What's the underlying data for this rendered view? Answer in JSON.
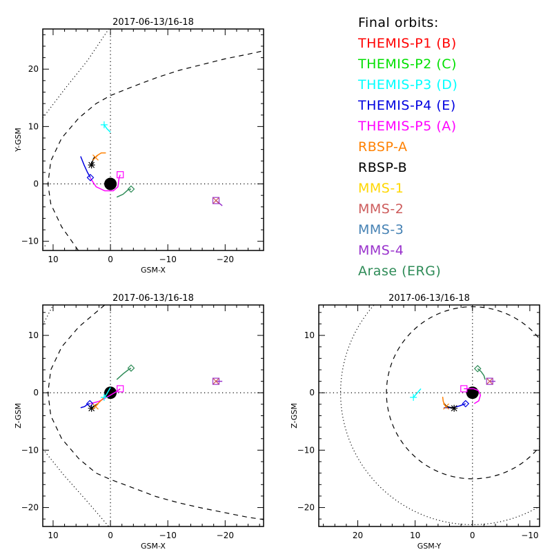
{
  "legend": {
    "title": "Final orbits:",
    "title_color": "#000000",
    "entries": [
      {
        "label": "THEMIS-P1 (B)",
        "color": "#ff0000"
      },
      {
        "label": "THEMIS-P2 (C)",
        "color": "#00e000"
      },
      {
        "label": "THEMIS-P3 (D)",
        "color": "#00ffff"
      },
      {
        "label": "THEMIS-P4 (E)",
        "color": "#0000e0"
      },
      {
        "label": "THEMIS-P5 (A)",
        "color": "#ff00ff"
      },
      {
        "label": "RBSP-A",
        "color": "#ff8000"
      },
      {
        "label": "RBSP-B",
        "color": "#000000"
      },
      {
        "label": "MMS-1",
        "color": "#ffd700"
      },
      {
        "label": "MMS-2",
        "color": "#cd5c5c"
      },
      {
        "label": "MMS-3",
        "color": "#4682b4"
      },
      {
        "label": "MMS-4",
        "color": "#9932cc"
      },
      {
        "label": "Arase (ERG)",
        "color": "#2e8b57"
      }
    ]
  },
  "chart_data": [
    {
      "type": "line",
      "panel": "xy",
      "title": "2017-06-13/16-18",
      "xlabel": "GSM-X",
      "ylabel": "Y-GSM",
      "xlim": [
        11.8,
        -26.7
      ],
      "ylim": [
        27.0,
        -11.6
      ],
      "xticks": [
        10,
        0,
        -10,
        -20
      ],
      "xtick_labels": [
        "10",
        "0",
        "-10",
        "-20"
      ],
      "yticks": [
        -10,
        0,
        10,
        20
      ],
      "ytick_labels": [
        "-10",
        "0",
        "10",
        "20"
      ],
      "grid": "dotted zero lines",
      "earth": {
        "x": 0,
        "y": 0,
        "r": 1.1
      },
      "boundaries": [
        {
          "name": "magnetopause",
          "style": "dashed",
          "points": [
            [
              5.6,
              -11.6
            ],
            [
              8.5,
              -7.5
            ],
            [
              10.4,
              -3.5
            ],
            [
              10.9,
              0
            ],
            [
              10.4,
              4
            ],
            [
              8.5,
              8
            ],
            [
              5.5,
              11.5
            ],
            [
              2.5,
              14.0
            ],
            [
              0,
              15.4
            ],
            [
              -4,
              17.0
            ],
            [
              -8,
              18.5
            ],
            [
              -12,
              19.8
            ],
            [
              -16,
              20.8
            ],
            [
              -20,
              21.8
            ],
            [
              -24,
              22.6
            ],
            [
              -26.7,
              23.2
            ]
          ]
        },
        {
          "name": "bow-shock",
          "style": "dotted",
          "points": [
            [
              11.8,
              -11.3
            ],
            [
              11.2,
              -10.5
            ]
          ]
        },
        {
          "name": "bow-shock-lower",
          "style": "dotted",
          "points": [
            [
              11.8,
              11.5
            ],
            [
              8,
              16.5
            ],
            [
              4,
              21.5
            ],
            [
              0.3,
              27.0
            ]
          ]
        }
      ],
      "series": [
        {
          "name": "THEMIS-P5 (A)",
          "color": "#ff00ff",
          "marker": "square",
          "points": [
            [
              3.5,
              1.0
            ],
            [
              2.5,
              -0.5
            ],
            [
              1,
              -1.2
            ],
            [
              -0.5,
              -1.2
            ],
            [
              -1.3,
              -0.5
            ],
            [
              -1.5,
              1.0
            ],
            [
              -1.7,
              1.6
            ]
          ]
        },
        {
          "name": "THEMIS-P4 (E)",
          "color": "#0000e0",
          "marker": "diamond",
          "points": [
            [
              5.2,
              4.8
            ],
            [
              4.6,
              3.3
            ],
            [
              4.0,
              2.0
            ],
            [
              3.5,
              1.1
            ]
          ]
        },
        {
          "name": "RBSP-B",
          "color": "#000000",
          "marker": "asterisk",
          "points": [
            [
              2.7,
              4.8
            ],
            [
              3.0,
              4.3
            ],
            [
              3.3,
              3.3
            ]
          ]
        },
        {
          "name": "RBSP-A",
          "color": "#ff8000",
          "marker": "x",
          "points": [
            [
              0.8,
              5.4
            ],
            [
              1.6,
              5.4
            ],
            [
              2.4,
              4.9
            ],
            [
              2.6,
              4.6
            ]
          ]
        },
        {
          "name": "THEMIS-P3 (D)",
          "color": "#00ffff",
          "marker": "plus",
          "points": [
            [
              0.0,
              9.0
            ],
            [
              0.6,
              9.6
            ],
            [
              1.1,
              10.3
            ]
          ]
        },
        {
          "name": "Arase (ERG)",
          "color": "#2e8b57",
          "marker": "diamond",
          "points": [
            [
              -1.1,
              -2.3
            ],
            [
              -2.2,
              -1.8
            ],
            [
              -3.1,
              -1.0
            ],
            [
              -3.6,
              -0.9
            ]
          ]
        },
        {
          "name": "MMS-4",
          "color": "#9932cc",
          "marker": "square",
          "points": [
            [
              -19.5,
              -3.8
            ],
            [
              -18.4,
              -2.9
            ]
          ]
        },
        {
          "name": "MMS-2",
          "color": "#cd5c5c",
          "marker": "x",
          "points": [
            [
              -18.4,
              -2.9
            ]
          ]
        }
      ]
    },
    {
      "type": "line",
      "panel": "xz",
      "title": "2017-06-13/16-18",
      "xlabel": "GSM-X",
      "ylabel": "Z-GSM",
      "xlim": [
        11.8,
        -26.7
      ],
      "ylim": [
        15.3,
        -23.3
      ],
      "xticks": [
        10,
        0,
        -10,
        -20
      ],
      "xtick_labels": [
        "10",
        "0",
        "-10",
        "-20"
      ],
      "yticks": [
        10,
        0,
        -10,
        -20
      ],
      "ytick_labels": [
        "10",
        "0",
        "-10",
        "-20"
      ],
      "grid": "dotted zero lines",
      "earth": {
        "x": 0,
        "y": 0,
        "r": 1.1
      },
      "boundaries": [
        {
          "name": "magnetopause",
          "style": "dashed",
          "points": [
            [
              1.0,
              15.3
            ],
            [
              5.5,
              11.5
            ],
            [
              8.5,
              8
            ],
            [
              10.4,
              4
            ],
            [
              10.9,
              0
            ],
            [
              10.4,
              -4
            ],
            [
              8.5,
              -8
            ],
            [
              5.5,
              -11.5
            ],
            [
              2.5,
              -14.0
            ],
            [
              0,
              -15.1
            ],
            [
              -4,
              -16.6
            ],
            [
              -8,
              -18.1
            ],
            [
              -12,
              -19.2
            ],
            [
              -16,
              -20.1
            ],
            [
              -20,
              -20.9
            ],
            [
              -24,
              -21.7
            ],
            [
              -26.7,
              -22.1
            ]
          ]
        },
        {
          "name": "bow-shock-upper",
          "style": "dotted",
          "points": [
            [
              11.8,
              11.8
            ],
            [
              10.0,
              15.3
            ]
          ]
        },
        {
          "name": "bow-shock-lower",
          "style": "dotted",
          "points": [
            [
              11.8,
              -9.8
            ],
            [
              8,
              -14.5
            ],
            [
              4,
              -19.0
            ],
            [
              0.3,
              -23.3
            ]
          ]
        }
      ],
      "series": [
        {
          "name": "THEMIS-P5 (A)",
          "color": "#ff00ff",
          "marker": "square",
          "points": [
            [
              3.5,
              -1.9
            ],
            [
              2.0,
              -1.5
            ],
            [
              0.5,
              -0.7
            ],
            [
              -1.2,
              0.3
            ],
            [
              -1.7,
              0.7
            ]
          ]
        },
        {
          "name": "THEMIS-P4 (E)",
          "color": "#0000e0",
          "marker": "diamond",
          "points": [
            [
              5.2,
              -2.6
            ],
            [
              4.5,
              -2.4
            ],
            [
              4.0,
              -2.0
            ],
            [
              3.6,
              -1.9
            ]
          ]
        },
        {
          "name": "RBSP-B",
          "color": "#000000",
          "marker": "asterisk",
          "points": [
            [
              2.2,
              -1.9
            ],
            [
              2.8,
              -2.3
            ],
            [
              3.3,
              -2.7
            ]
          ]
        },
        {
          "name": "RBSP-A",
          "color": "#ff8000",
          "marker": "x",
          "points": [
            [
              0.8,
              -0.5
            ],
            [
              1.6,
              -1.3
            ],
            [
              2.4,
              -2.1
            ],
            [
              2.6,
              -2.4
            ]
          ]
        },
        {
          "name": "THEMIS-P3 (D)",
          "color": "#00ffff",
          "marker": "plus",
          "points": [
            [
              0.0,
              0.9
            ],
            [
              0.7,
              -0.3
            ],
            [
              1.1,
              -0.8
            ]
          ]
        },
        {
          "name": "Arase (ERG)",
          "color": "#2e8b57",
          "marker": "diamond",
          "points": [
            [
              -1.1,
              2.3
            ],
            [
              -2.2,
              3.3
            ],
            [
              -3.1,
              4.0
            ],
            [
              -3.6,
              4.3
            ]
          ]
        },
        {
          "name": "MMS-4",
          "color": "#9932cc",
          "marker": "square",
          "points": [
            [
              -19.5,
              2.0
            ],
            [
              -18.4,
              2.0
            ]
          ]
        },
        {
          "name": "MMS-2",
          "color": "#cd5c5c",
          "marker": "x",
          "points": [
            [
              -18.4,
              2.0
            ]
          ]
        }
      ]
    },
    {
      "type": "line",
      "panel": "yz",
      "title": "2017-06-13/16-18",
      "xlabel": "GSM-Y",
      "ylabel": "Z-GSM",
      "xlim": [
        26.8,
        -11.7
      ],
      "ylim": [
        15.3,
        -23.3
      ],
      "xticks": [
        20,
        10,
        0,
        -10
      ],
      "xtick_labels": [
        "20",
        "10",
        "0",
        "-10"
      ],
      "yticks": [
        10,
        0,
        -10,
        -20
      ],
      "ytick_labels": [
        "10",
        "0",
        "-10",
        "-20"
      ],
      "grid": "dotted zero lines",
      "earth": {
        "x": 0,
        "y": 0,
        "r": 1.1
      },
      "boundaries": [
        {
          "name": "magnetopause-circle",
          "style": "dashed",
          "circle": {
            "cx": 0,
            "cy": 0,
            "r": 15.0
          }
        },
        {
          "name": "bow-shock-circle",
          "style": "dotted",
          "circle": {
            "cx": 0,
            "cy": 0,
            "r": 23.0
          }
        }
      ],
      "series": [
        {
          "name": "THEMIS-P5 (A)",
          "color": "#ff00ff",
          "marker": "square",
          "points": [
            [
              -0.3,
              -1.9
            ],
            [
              -1.1,
              -1.4
            ],
            [
              -1.4,
              -0.4
            ],
            [
              -1.0,
              0.4
            ],
            [
              -0.2,
              0.7
            ],
            [
              1.0,
              0.7
            ],
            [
              1.5,
              0.7
            ]
          ]
        },
        {
          "name": "THEMIS-P4 (E)",
          "color": "#0000e0",
          "marker": "diamond",
          "points": [
            [
              5.0,
              -2.6
            ],
            [
              3.5,
              -2.6
            ],
            [
              2.3,
              -2.3
            ],
            [
              1.2,
              -1.9
            ]
          ]
        },
        {
          "name": "RBSP-B",
          "color": "#000000",
          "marker": "asterisk",
          "points": [
            [
              5.0,
              -1.8
            ],
            [
              4.5,
              -2.4
            ],
            [
              3.2,
              -2.7
            ]
          ]
        },
        {
          "name": "RBSP-A",
          "color": "#ff8000",
          "marker": "x",
          "points": [
            [
              5.2,
              -0.7
            ],
            [
              5.1,
              -1.5
            ],
            [
              4.8,
              -2.2
            ],
            [
              4.6,
              -2.4
            ]
          ]
        },
        {
          "name": "THEMIS-P3 (D)",
          "color": "#00ffff",
          "marker": "plus",
          "points": [
            [
              9.0,
              0.7
            ],
            [
              9.6,
              0.0
            ],
            [
              10.3,
              -0.8
            ]
          ]
        },
        {
          "name": "Arase (ERG)",
          "color": "#2e8b57",
          "marker": "diamond",
          "points": [
            [
              -2.2,
              2.3
            ],
            [
              -2.0,
              3.0
            ],
            [
              -1.5,
              3.7
            ],
            [
              -0.9,
              4.2
            ]
          ]
        },
        {
          "name": "MMS-4",
          "color": "#9932cc",
          "marker": "square",
          "points": [
            [
              -4.0,
              2.0
            ],
            [
              -3.0,
              2.0
            ]
          ]
        },
        {
          "name": "MMS-2",
          "color": "#cd5c5c",
          "marker": "x",
          "points": [
            [
              -3.0,
              2.0
            ]
          ]
        }
      ]
    }
  ]
}
